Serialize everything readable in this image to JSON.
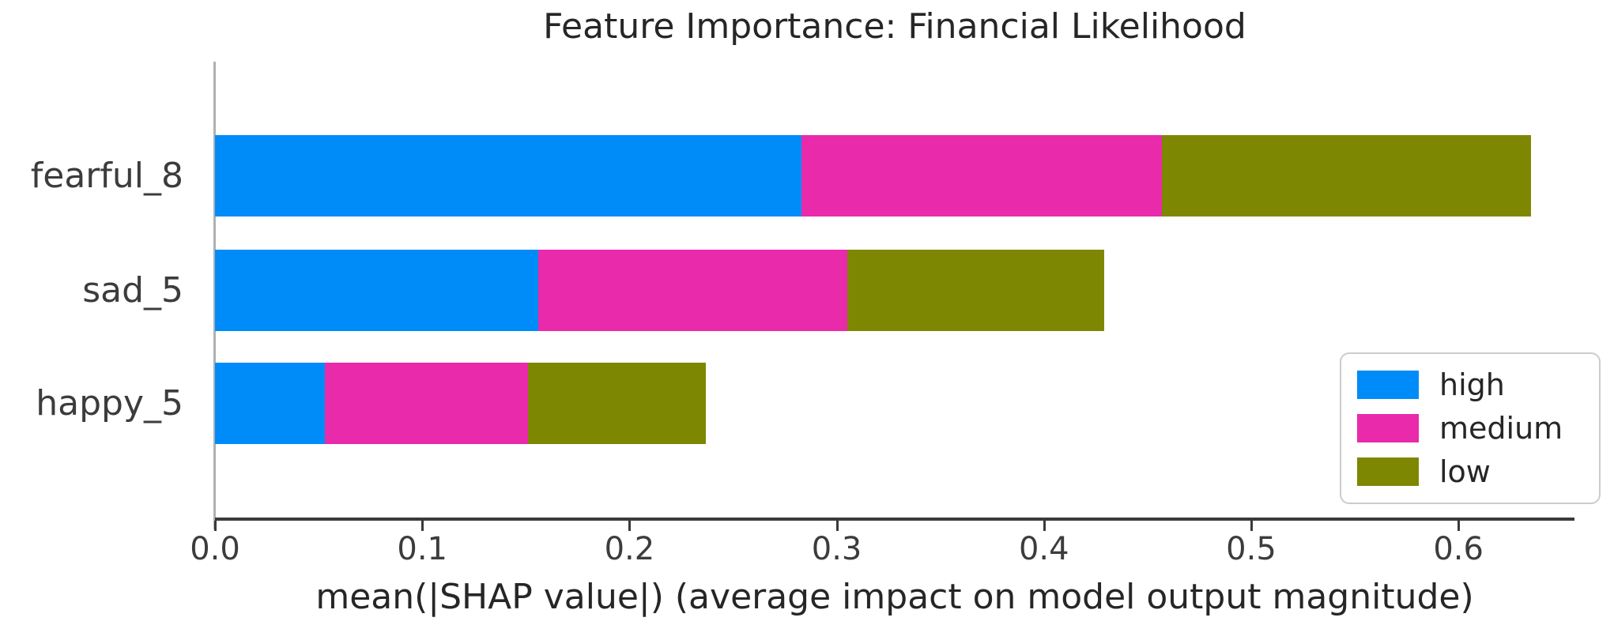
{
  "title": "Feature Importance: Financial Likelihood",
  "chart_data": {
    "type": "bar",
    "orientation": "horizontal",
    "stacked": true,
    "title": "Feature Importance: Financial Likelihood",
    "categories": [
      "fearful_8",
      "sad_5",
      "happy_5"
    ],
    "series": [
      {
        "name": "high",
        "color": "#008cf8",
        "values": [
          0.283,
          0.156,
          0.053
        ]
      },
      {
        "name": "medium",
        "color": "#e82aab",
        "values": [
          0.174,
          0.149,
          0.098
        ]
      },
      {
        "name": "low",
        "color": "#7e8702",
        "values": [
          0.178,
          0.124,
          0.086
        ]
      }
    ],
    "totals": [
      0.635,
      0.429,
      0.237
    ],
    "xlabel": "mean(|SHAP value|) (average impact on model output magnitude)",
    "ylabel": "",
    "xlim": [
      0.0,
      0.656
    ],
    "xticks": [
      0.0,
      0.1,
      0.2,
      0.3,
      0.4,
      0.5,
      0.6
    ],
    "grid": false,
    "legend": {
      "position": "lower right",
      "entries": [
        "high",
        "medium",
        "low"
      ]
    },
    "colors": {
      "axis_line": "#3a3a3a",
      "spine": "#b0b0b0",
      "text": "#262626",
      "tick_text": "#3c3c3c",
      "legend_border": "#cccccc",
      "background": "#ffffff"
    }
  }
}
